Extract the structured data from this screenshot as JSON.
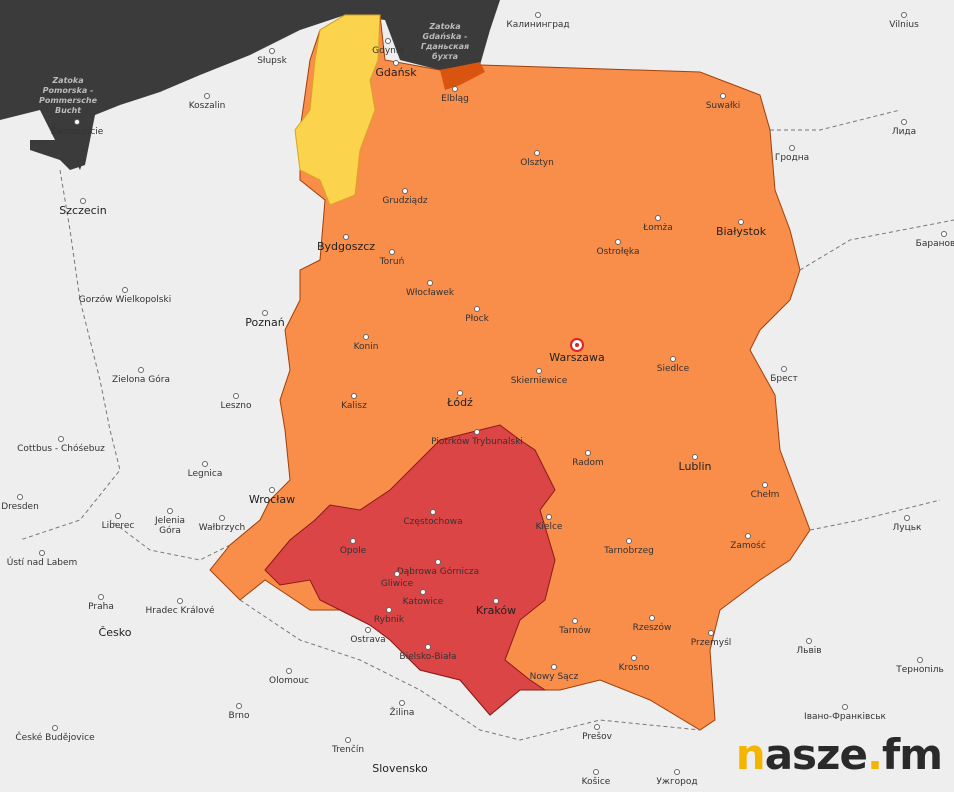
{
  "map": {
    "colors": {
      "sea": "#3b3b3b",
      "land": "#eeeeee",
      "warning_level_1": "#fcd34d",
      "warning_level_2": "#f98d4a",
      "warning_level_3": "#dc4545",
      "lagoon": "#d9550f"
    },
    "sea_labels": [
      "Zatoka Pomorska - Pommersche Bucht",
      "Zatoka Gdańska - Гданьская бухта"
    ],
    "cities": [
      "Słupsk",
      "Gdynia",
      "Gdańsk",
      "Калининград",
      "Vilnius",
      "Koszalin",
      "Świnoujście",
      "Elbląg",
      "Suwałki",
      "Лида",
      "Olsztyn",
      "Гродна",
      "Szczecin",
      "Grudziądz",
      "Łomża",
      "Białystok",
      "Bydgoszcz",
      "Toruń",
      "Ostrołęka",
      "Барановичи",
      "Gorzów Wielkopolski",
      "Włocławek",
      "Płock",
      "Poznań",
      "Konin",
      "Warszawa",
      "Zielona Góra",
      "Skierniewice",
      "Siedlce",
      "Брест",
      "Leszno",
      "Kalisz",
      "Łódź",
      "Cottbus - Chóśebuz",
      "Piotrków Trybunalski",
      "Radom",
      "Lublin",
      "Legnica",
      "Wrocław",
      "Chełm",
      "Dresden",
      "Liberec",
      "Jelenia Góra",
      "Wałbrzych",
      "Częstochowa",
      "Kielce",
      "Луцьк",
      "Opole",
      "Zamość",
      "Ústí nad Labem",
      "Dąbrowa Górnicza",
      "Tarnobrzeg",
      "Gliwice",
      "Katowice",
      "Praha",
      "Hradec Králové",
      "Rybnik",
      "Kraków",
      "Rzeszów",
      "Tarnów",
      "Przemyśl",
      "Ostrava",
      "Львів",
      "Тернопіль",
      "Bielsko-Biała",
      "Nowy Sącz",
      "Krosno",
      "Olomouc",
      "Brno",
      "Žilina",
      "Prešov",
      "České Budějovice",
      "Trenčín",
      "Івано-Франківськ",
      "Košice",
      "Ужгород"
    ],
    "countries": [
      "Česko",
      "Slovensko"
    ]
  },
  "logo": {
    "n": "n",
    "rest": "asze",
    "dot": ".",
    "fm": "fm"
  }
}
